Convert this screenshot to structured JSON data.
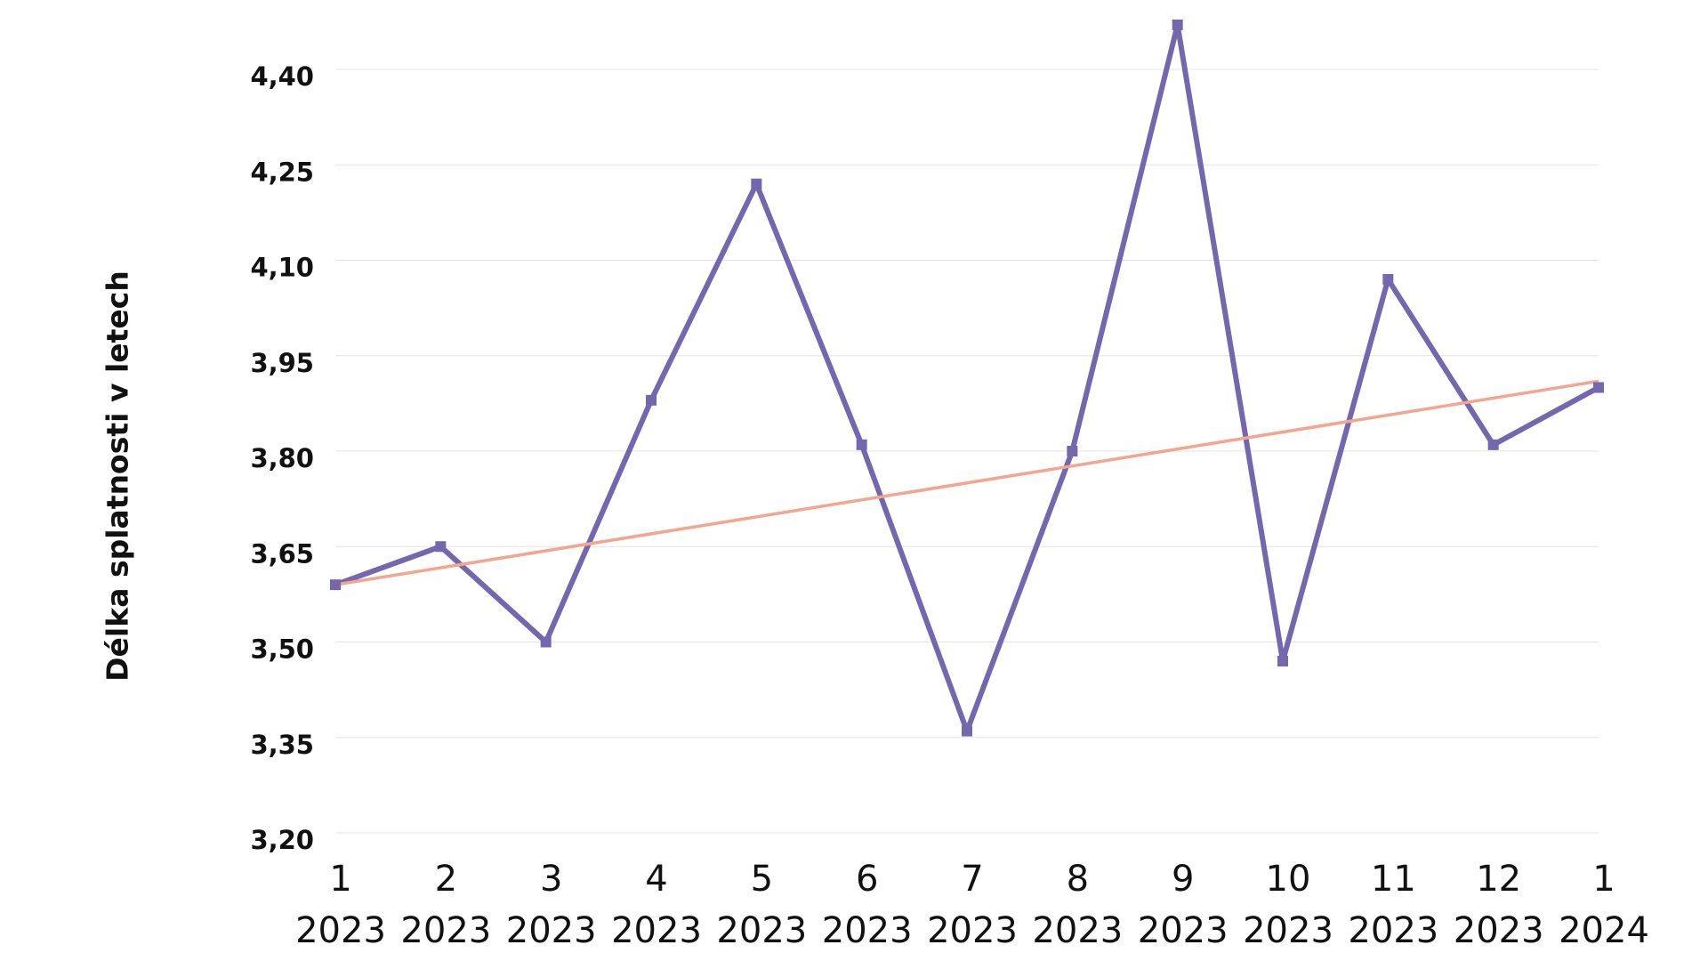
{
  "chart_data": {
    "type": "line",
    "y_label": "Délka splatnosti v letech",
    "categories": [
      [
        "1",
        "2023"
      ],
      [
        "2",
        "2023"
      ],
      [
        "3",
        "2023"
      ],
      [
        "4",
        "2023"
      ],
      [
        "5",
        "2023"
      ],
      [
        "6",
        "2023"
      ],
      [
        "7",
        "2023"
      ],
      [
        "8",
        "2023"
      ],
      [
        "9",
        "2023"
      ],
      [
        "10",
        "2023"
      ],
      [
        "11",
        "2023"
      ],
      [
        "12",
        "2023"
      ],
      [
        "1",
        "2024"
      ]
    ],
    "values": [
      3.59,
      3.65,
      3.5,
      3.88,
      4.22,
      3.81,
      3.36,
      3.8,
      4.47,
      3.47,
      4.07,
      3.81,
      3.9
    ],
    "color": "#7467ad",
    "trendline": {
      "color": "#f4a58f",
      "values": [
        3.59,
        3.91
      ]
    },
    "ylim": [
      3.2,
      4.5
    ],
    "yticks": [
      {
        "value": 3.2,
        "label": "3,20"
      },
      {
        "value": 3.35,
        "label": "3,35"
      },
      {
        "value": 3.5,
        "label": "3,50"
      },
      {
        "value": 3.65,
        "label": "3,65"
      },
      {
        "value": 3.8,
        "label": "3,80"
      },
      {
        "value": 3.95,
        "label": "3,95"
      },
      {
        "value": 4.1,
        "label": "4,10"
      },
      {
        "value": 4.25,
        "label": "4,25"
      },
      {
        "value": 4.4,
        "label": "4,40"
      }
    ],
    "grid": true
  }
}
